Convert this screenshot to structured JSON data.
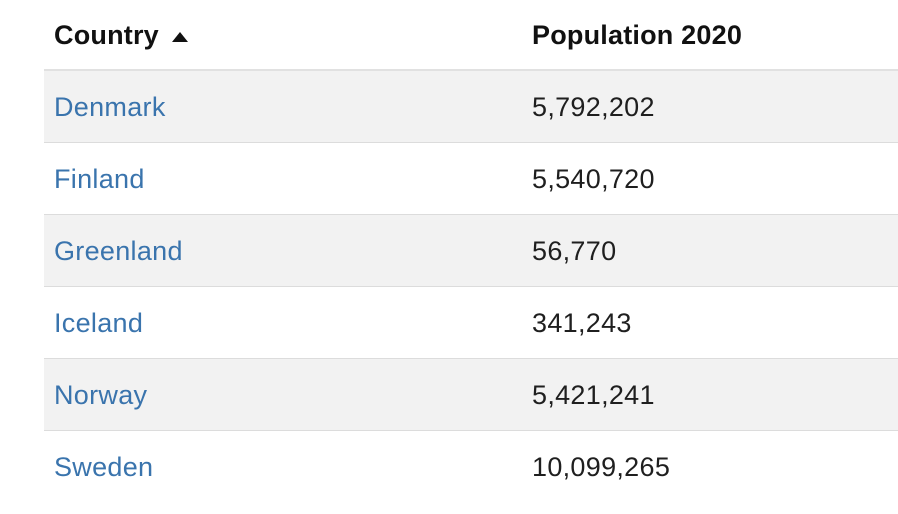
{
  "table": {
    "headers": {
      "country": "Country",
      "population": "Population 2020"
    },
    "sort": {
      "column": "country",
      "direction": "ascending",
      "icon": "sort-ascending-icon"
    },
    "rows": [
      {
        "country": "Denmark",
        "population": "5,792,202"
      },
      {
        "country": "Finland",
        "population": "5,540,720"
      },
      {
        "country": "Greenland",
        "population": "56,770"
      },
      {
        "country": "Iceland",
        "population": "341,243"
      },
      {
        "country": "Norway",
        "population": "5,421,241"
      },
      {
        "country": "Sweden",
        "population": "10,099,265"
      }
    ]
  },
  "colors": {
    "link": "#3a74ad",
    "stripe": "#f2f2f2",
    "divider": "#dcdcdc",
    "text": "#1f1f1f"
  }
}
